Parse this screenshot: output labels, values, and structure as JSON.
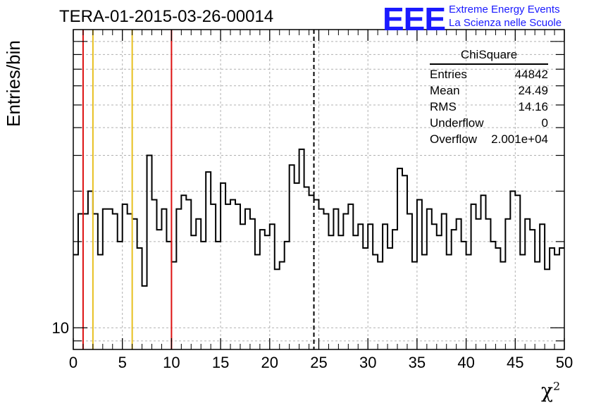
{
  "title": "TERA-01-2015-03-26-00014",
  "logo": {
    "text": "EEE",
    "line1": "Extreme Energy Events",
    "line2": "La Scienza nelle Scuole"
  },
  "stats_box": {
    "title": "ChiSquare",
    "rows": [
      {
        "label": "Entries",
        "value": "44842"
      },
      {
        "label": "Mean",
        "value": "24.49"
      },
      {
        "label": "RMS",
        "value": "14.16"
      },
      {
        "label": "Underflow",
        "value": "0"
      },
      {
        "label": "Overflow",
        "value": "2.001e+04"
      }
    ]
  },
  "chart_data": {
    "type": "histogram",
    "title": "TERA-01-2015-03-26-00014",
    "xlabel": "χ",
    "xlabel_superscript": "2",
    "ylabel": "Entries/bin",
    "xlim": [
      0,
      50
    ],
    "ylim": [
      8.4,
      110
    ],
    "y_scale": "log",
    "x_ticks": [
      0,
      5,
      10,
      15,
      20,
      25,
      30,
      35,
      40,
      45,
      50
    ],
    "y_tick_labels": [
      {
        "value": 10,
        "label": "10"
      }
    ],
    "grid": true,
    "bin_width": 0.5,
    "bin_contents": [
      18,
      25,
      25,
      30,
      25,
      18,
      26,
      26,
      25,
      20,
      27,
      25,
      24,
      19,
      14,
      40,
      28,
      22,
      26,
      20,
      17,
      26,
      29,
      28,
      21,
      24,
      20,
      35,
      27,
      20,
      32,
      27,
      28,
      27,
      23,
      26,
      24,
      18,
      22,
      21,
      23,
      16,
      17,
      20,
      37,
      32,
      42,
      31,
      29,
      28,
      26,
      25,
      21,
      26,
      21,
      25,
      27,
      21,
      23,
      19,
      23,
      18,
      17,
      23,
      19,
      22,
      36,
      34,
      25,
      17,
      28,
      18,
      26,
      23,
      21,
      25,
      18,
      22,
      24,
      20,
      18,
      27,
      24,
      29,
      24,
      20,
      19,
      17,
      24,
      30,
      29,
      18,
      24,
      22,
      17,
      23,
      16,
      19,
      18,
      19
    ],
    "vertical_lines": [
      {
        "x": 1,
        "color": "#dd1111",
        "style": "solid"
      },
      {
        "x": 2,
        "color": "#e8c020",
        "style": "solid"
      },
      {
        "x": 6,
        "color": "#e8c020",
        "style": "solid"
      },
      {
        "x": 10,
        "color": "#dd1111",
        "style": "solid"
      },
      {
        "x": 24.5,
        "color": "#000000",
        "style": "dashed"
      }
    ]
  }
}
